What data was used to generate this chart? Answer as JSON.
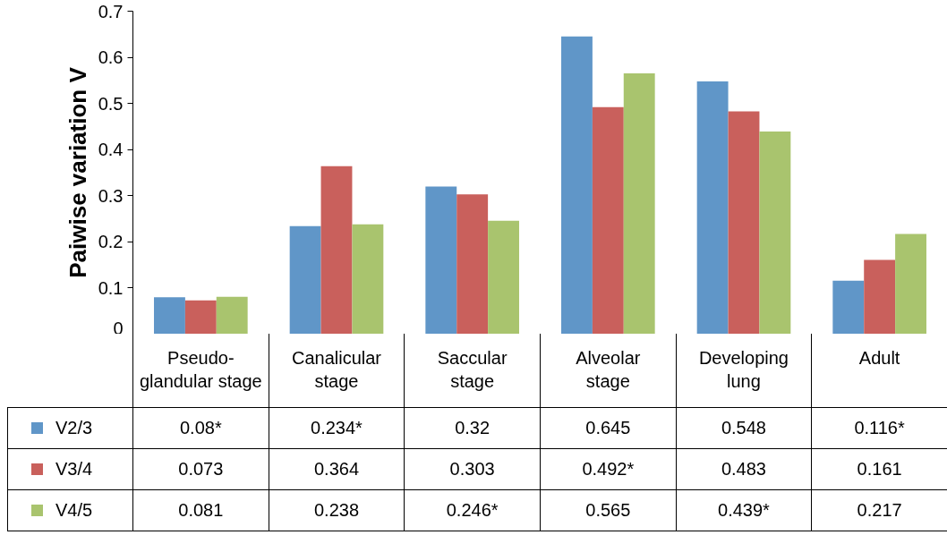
{
  "chart_data": {
    "type": "bar",
    "ylabel": "Paiwise variation V",
    "categories": [
      "Pseudo-\nglandular stage",
      "Canalicular\nstage",
      "Saccular\nstage",
      "Alveolar\nstage",
      "Developing\nlung",
      "Adult"
    ],
    "series": [
      {
        "name": "V2/3",
        "color": "#6096c8",
        "values": [
          0.08,
          0.234,
          0.32,
          0.645,
          0.548,
          0.116
        ],
        "value_labels": [
          "0.08*",
          "0.234*",
          "0.32",
          "0.645",
          "0.548",
          "0.116*"
        ]
      },
      {
        "name": "V3/4",
        "color": "#c9605c",
        "values": [
          0.073,
          0.364,
          0.303,
          0.492,
          0.483,
          0.161
        ],
        "value_labels": [
          "0.073",
          "0.364",
          "0.303",
          "0.492*",
          "0.483",
          "0.161"
        ]
      },
      {
        "name": "V4/5",
        "color": "#a9c46e",
        "values": [
          0.081,
          0.238,
          0.246,
          0.565,
          0.439,
          0.217
        ],
        "value_labels": [
          "0.081",
          "0.238",
          "0.246*",
          "0.565",
          "0.439*",
          "0.217"
        ]
      }
    ],
    "ylim": [
      0,
      0.7
    ],
    "yticks": [
      0,
      0.1,
      0.2,
      0.3,
      0.4,
      0.5,
      0.6,
      0.7
    ],
    "grid": false,
    "legend": "bottom"
  }
}
